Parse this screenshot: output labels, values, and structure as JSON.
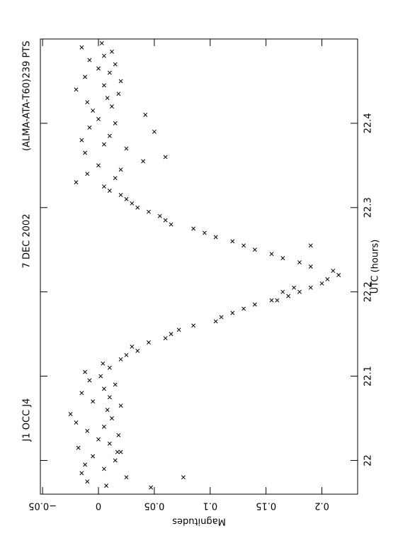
{
  "chart_data": {
    "type": "scatter",
    "title": [
      "J1 OCC J4",
      "7 DEC 2002",
      "(ALMA-ATA-T60)",
      "239 PTS"
    ],
    "x_label": "UTC (hours)",
    "y_label": "Magnitudes",
    "xlim": [
      21.96,
      22.5
    ],
    "ylim": [
      -0.052,
      0.232
    ],
    "xticks": [
      22,
      22.1,
      22.2,
      22.3,
      22.4
    ],
    "yticks": [
      {
        "value": -0.05,
        "label": "−0.05"
      },
      0,
      0.05,
      0.1,
      0.15,
      0.2
    ],
    "color": "#000000",
    "x": [
      21.97,
      21.975,
      21.98,
      21.985,
      21.99,
      21.995,
      22.0,
      22.005,
      22.01,
      22.015,
      22.02,
      22.025,
      22.03,
      22.035,
      22.04,
      22.045,
      22.05,
      22.055,
      22.06,
      22.065,
      22.07,
      22.075,
      22.08,
      22.085,
      22.09,
      22.095,
      22.1,
      22.105,
      22.11,
      22.115,
      22.12,
      21.968,
      21.98,
      22.01,
      22.125,
      22.13,
      22.135,
      22.14,
      22.145,
      22.15,
      22.155,
      22.16,
      22.165,
      22.17,
      22.175,
      22.18,
      22.185,
      22.19,
      22.195,
      22.2,
      22.205,
      22.21,
      22.215,
      22.22,
      22.2,
      22.19,
      22.205,
      22.225,
      22.23,
      22.235,
      22.24,
      22.245,
      22.25,
      22.255,
      22.26,
      22.265,
      22.27,
      22.275,
      22.28,
      22.285,
      22.29,
      22.295,
      22.3,
      22.305,
      22.31,
      22.315,
      22.32,
      22.255,
      22.325,
      22.33,
      22.335,
      22.34,
      22.345,
      22.35,
      22.355,
      22.36,
      22.365,
      22.37,
      22.375,
      22.38,
      22.385,
      22.39,
      22.395,
      22.4,
      22.405,
      22.41,
      22.415,
      22.42,
      22.425,
      22.43,
      22.435,
      22.44,
      22.445,
      22.45,
      22.455,
      22.46,
      22.465,
      22.47,
      22.475,
      22.48,
      22.485,
      22.49,
      22.495
    ],
    "y": [
      0.007,
      -0.01,
      0.025,
      -0.015,
      0.005,
      -0.012,
      0.015,
      -0.005,
      0.02,
      -0.018,
      0.01,
      0.0,
      0.018,
      -0.01,
      0.005,
      -0.02,
      0.012,
      -0.025,
      0.008,
      0.02,
      -0.005,
      0.01,
      -0.015,
      0.005,
      0.015,
      -0.008,
      0.002,
      -0.012,
      0.01,
      0.004,
      0.02,
      0.047,
      0.076,
      0.017,
      0.025,
      0.035,
      0.03,
      0.045,
      0.06,
      0.065,
      0.072,
      0.085,
      0.105,
      0.11,
      0.12,
      0.13,
      0.14,
      0.155,
      0.17,
      0.18,
      0.19,
      0.2,
      0.205,
      0.215,
      0.165,
      0.16,
      0.175,
      0.21,
      0.19,
      0.18,
      0.165,
      0.155,
      0.14,
      0.13,
      0.12,
      0.105,
      0.095,
      0.085,
      0.065,
      0.06,
      0.055,
      0.045,
      0.035,
      0.03,
      0.025,
      0.02,
      0.01,
      0.19,
      0.005,
      -0.02,
      0.015,
      -0.01,
      0.02,
      0.0,
      0.04,
      0.06,
      -0.012,
      0.025,
      0.005,
      -0.015,
      0.01,
      0.05,
      -0.008,
      0.015,
      0.0,
      0.042,
      -0.005,
      0.012,
      -0.01,
      0.008,
      0.018,
      -0.02,
      0.005,
      0.02,
      -0.012,
      0.01,
      0.0,
      0.015,
      -0.008,
      0.005,
      0.012,
      -0.015,
      0.003
    ]
  }
}
